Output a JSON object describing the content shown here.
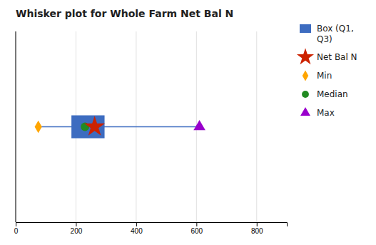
{
  "chart_data": {
    "type": "box",
    "title": "Whisker plot for Whole Farm Net Bal N",
    "series": [
      {
        "name": "Box (Q1,\nQ3)",
        "type": "box",
        "color": "#3D6CC0",
        "values": [
          185,
          295
        ]
      },
      {
        "name": "Net Bal N",
        "type": "scatter",
        "marker": "star",
        "color": "#CC2200",
        "values": [
          262
        ]
      },
      {
        "name": "Min",
        "type": "scatter",
        "marker": "diamond",
        "color": "#FFA500",
        "values": [
          75
        ]
      },
      {
        "name": "Median",
        "type": "scatter",
        "marker": "circle",
        "color": "#228B22",
        "values": [
          230
        ]
      },
      {
        "name": "Max",
        "type": "scatter",
        "marker": "triangle",
        "color": "#9900CC",
        "values": [
          610
        ]
      }
    ],
    "xlim": [
      0,
      900
    ],
    "xticks": [
      0,
      200,
      400,
      600,
      800
    ],
    "grid": true,
    "legend": "right",
    "tick_labels": "x"
  }
}
